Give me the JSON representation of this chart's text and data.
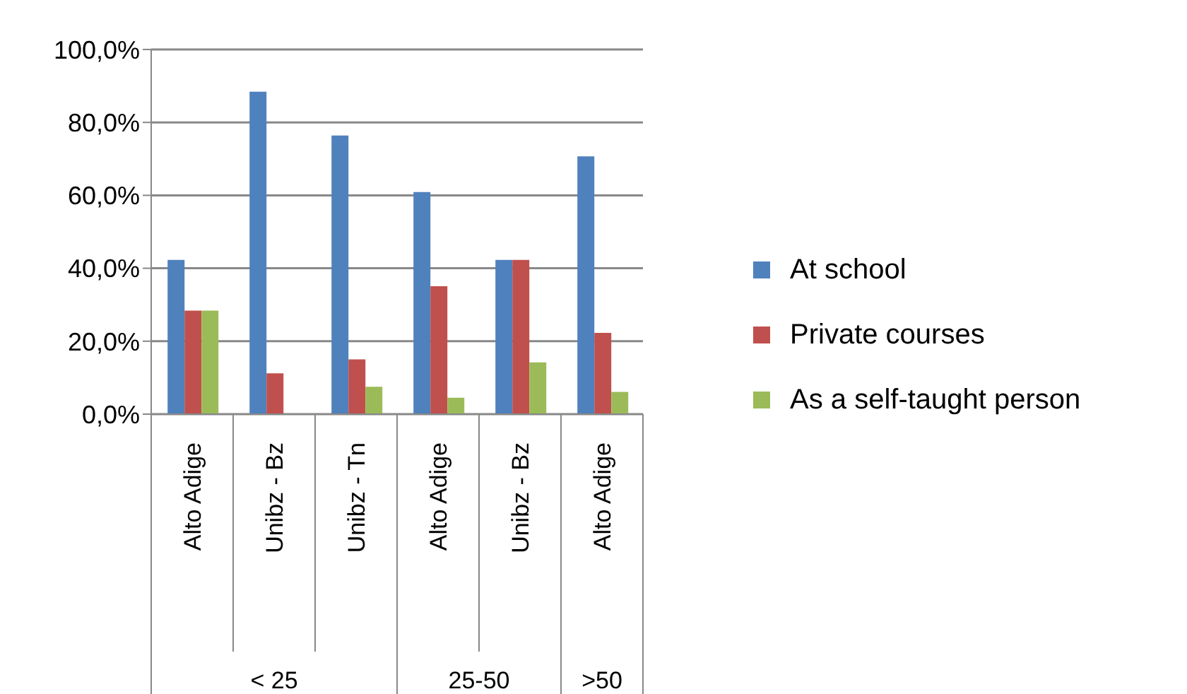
{
  "chart_data": {
    "type": "bar",
    "categories": [
      "Alto Adige",
      "Unibz - Bz",
      "Unibz - Tn",
      "Alto Adige",
      "Unibz - Bz",
      "Alto Adige"
    ],
    "series": [
      {
        "name": "At school",
        "color": "#4f81bd",
        "values": [
          42.3,
          88.4,
          76.4,
          60.9,
          42.3,
          70.7
        ]
      },
      {
        "name": "Private courses",
        "color": "#c0504d",
        "values": [
          28.4,
          11.2,
          15.0,
          35.1,
          42.3,
          22.3
        ]
      },
      {
        "name": "As a self-taught person",
        "color": "#9bbb59",
        "values": [
          28.4,
          0,
          7.5,
          4.5,
          14.2,
          6.1
        ]
      }
    ],
    "annotations": [
      "< 25",
      "25-50",
      ">50"
    ],
    "ylim": [
      0,
      100
    ],
    "yticks": [
      {
        "value": 0,
        "label": "0,0%"
      },
      {
        "value": 20,
        "label": "20,0%"
      },
      {
        "value": 40,
        "label": "40,0%"
      },
      {
        "value": 60,
        "label": "60,0%"
      },
      {
        "value": 80,
        "label": "80,0%"
      },
      {
        "value": 100,
        "label": "100,0%"
      }
    ],
    "grid": "y",
    "legend": "right"
  }
}
